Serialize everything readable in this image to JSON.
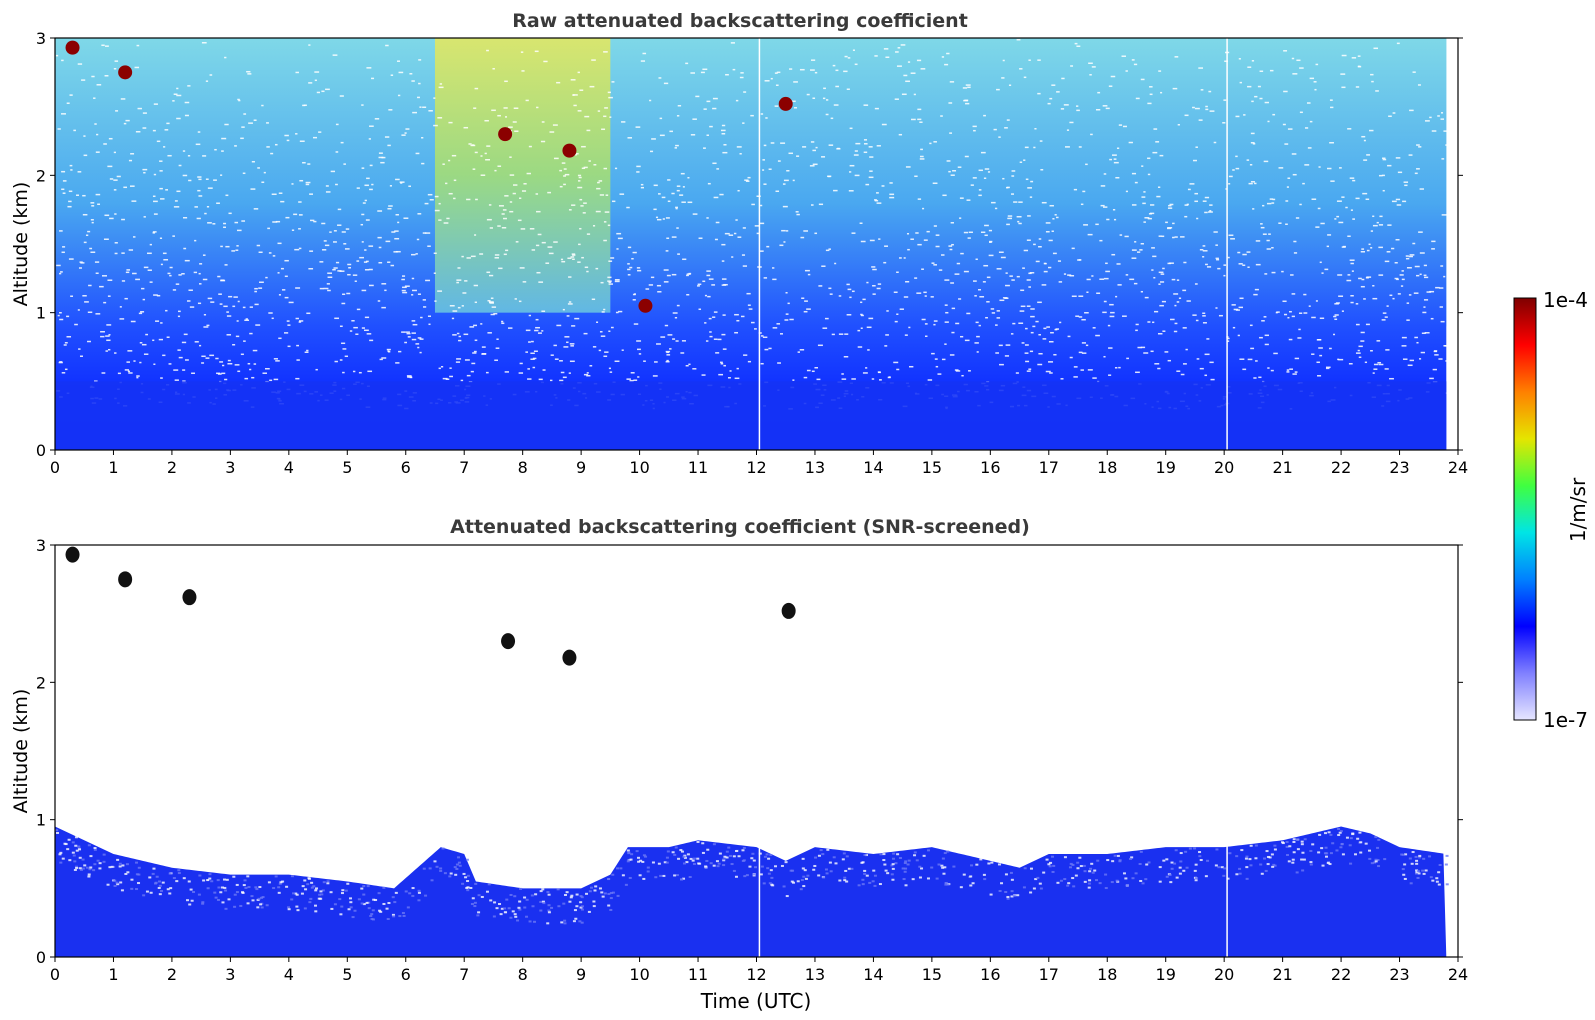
{
  "chart_data": [
    {
      "type": "heatmap",
      "title": "Raw attenuated backscattering coefficient",
      "xlabel": "",
      "ylabel": "Altitude (km)",
      "xlim": [
        0,
        24
      ],
      "ylim": [
        0,
        3
      ],
      "xticks": [
        "0",
        "1",
        "2",
        "3",
        "4",
        "5",
        "6",
        "7",
        "8",
        "9",
        "10",
        "11",
        "12",
        "13",
        "14",
        "15",
        "16",
        "17",
        "18",
        "19",
        "20",
        "21",
        "22",
        "23",
        "24"
      ],
      "yticks": [
        "0",
        "1",
        "2",
        "3"
      ],
      "data_end_hour": 23.8,
      "background_top_hour": 0.9,
      "data_gap_hours": [
        12.05,
        20.05
      ],
      "features": [
        {
          "name": "boundary layer",
          "x_range": [
            0,
            23.8
          ],
          "top_km": 0.5,
          "level": "blue"
        },
        {
          "name": "aerosol layer",
          "x_range": [
            6.5,
            9.5
          ],
          "alt_range_km": [
            1.0,
            3.0
          ],
          "level": "yellow-green"
        },
        {
          "name": "cloud",
          "x": 0.3,
          "alt_km": 2.93,
          "level": "dark red"
        },
        {
          "name": "cloud",
          "x": 1.2,
          "alt_km": 2.75,
          "level": "dark red"
        },
        {
          "name": "cloud",
          "x": 7.7,
          "alt_km": 2.3,
          "level": "dark red"
        },
        {
          "name": "cloud",
          "x": 8.8,
          "alt_km": 2.18,
          "level": "dark red"
        },
        {
          "name": "cloud",
          "x": 10.1,
          "alt_km": 1.05,
          "level": "dark red"
        },
        {
          "name": "cloud",
          "x": 12.5,
          "alt_km": 2.52,
          "level": "dark red"
        }
      ]
    },
    {
      "type": "heatmap",
      "title": "Attenuated backscattering coefficient (SNR-screened)",
      "xlabel": "Time (UTC)",
      "ylabel": "Altitude (km)",
      "xlim": [
        0,
        24
      ],
      "ylim": [
        0,
        3
      ],
      "xticks": [
        "0",
        "1",
        "2",
        "3",
        "4",
        "5",
        "6",
        "7",
        "8",
        "9",
        "10",
        "11",
        "12",
        "13",
        "14",
        "15",
        "16",
        "17",
        "18",
        "19",
        "20",
        "21",
        "22",
        "23",
        "24"
      ],
      "yticks": [
        "0",
        "1",
        "2",
        "3"
      ],
      "data_end_hour": 23.8,
      "data_gap_hours": [
        12.05,
        20.05
      ],
      "layer_top_km": [
        [
          0,
          0.95
        ],
        [
          1,
          0.75
        ],
        [
          2,
          0.65
        ],
        [
          3,
          0.6
        ],
        [
          4,
          0.6
        ],
        [
          5,
          0.55
        ],
        [
          5.8,
          0.5
        ],
        [
          6.2,
          0.65
        ],
        [
          6.6,
          0.8
        ],
        [
          7.0,
          0.75
        ],
        [
          7.2,
          0.55
        ],
        [
          8.0,
          0.5
        ],
        [
          9.0,
          0.5
        ],
        [
          9.5,
          0.6
        ],
        [
          9.8,
          0.8
        ],
        [
          10.5,
          0.8
        ],
        [
          11.0,
          0.85
        ],
        [
          12.0,
          0.8
        ],
        [
          12.5,
          0.7
        ],
        [
          13.0,
          0.8
        ],
        [
          14.0,
          0.75
        ],
        [
          15.0,
          0.8
        ],
        [
          16.0,
          0.7
        ],
        [
          16.5,
          0.65
        ],
        [
          17.0,
          0.75
        ],
        [
          18.0,
          0.75
        ],
        [
          19.0,
          0.8
        ],
        [
          20.0,
          0.8
        ],
        [
          21.0,
          0.85
        ],
        [
          22.0,
          0.95
        ],
        [
          22.5,
          0.9
        ],
        [
          23.0,
          0.8
        ],
        [
          23.8,
          0.75
        ]
      ],
      "clouds": [
        {
          "x": 0.3,
          "alt_km": 2.93
        },
        {
          "x": 1.2,
          "alt_km": 2.75
        },
        {
          "x": 2.3,
          "alt_km": 2.62
        },
        {
          "x": 7.75,
          "alt_km": 2.3
        },
        {
          "x": 8.8,
          "alt_km": 2.18
        },
        {
          "x": 12.55,
          "alt_km": 2.52
        }
      ]
    }
  ],
  "colorbar": {
    "label": "1/m/sr",
    "min_label": "1e-7",
    "max_label": "1e-4",
    "colormap": [
      "#e6e6ff",
      "#8080ff",
      "#0000ff",
      "#0080ff",
      "#00e5e5",
      "#40ff40",
      "#e5e500",
      "#ff8000",
      "#ff0000",
      "#7f0000"
    ]
  }
}
